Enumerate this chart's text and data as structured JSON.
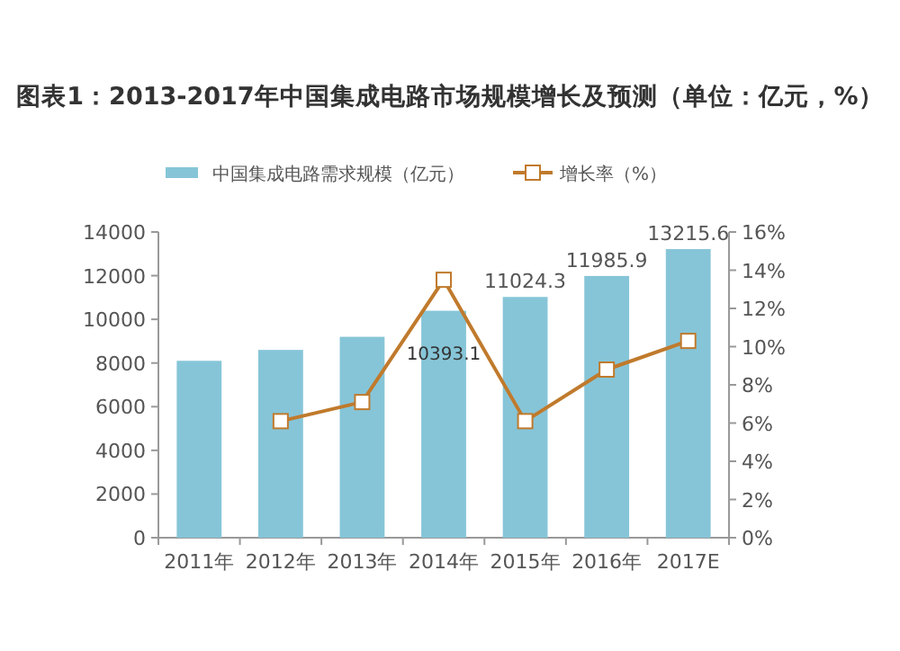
{
  "chart_data": {
    "type": "bar",
    "title": "图表1：2013-2017年中国集成电路市场规模增长及预测（单位：亿元，%）",
    "categories": [
      "2011年",
      "2012年",
      "2013年",
      "2014年",
      "2015年",
      "2016年",
      "2017E"
    ],
    "series": [
      {
        "name": "中国集成电路需求规模（亿元）",
        "color": "#86c5d8",
        "values": [
          8100,
          8600,
          9200,
          10393.1,
          11024.3,
          11985.9,
          13215.6
        ],
        "value_labels": [
          null,
          null,
          null,
          "10393.1",
          "11024.3",
          "11985.9",
          "13215.6"
        ]
      },
      {
        "name": "增长率（%）",
        "type": "line",
        "axis": "y2",
        "color": "#c07a2c",
        "marker": "square",
        "values": [
          null,
          6.1,
          7.1,
          13.5,
          6.1,
          8.8,
          10.3
        ]
      }
    ],
    "ylim": [
      0,
      14000
    ],
    "yticks": [
      0,
      2000,
      4000,
      6000,
      8000,
      10000,
      12000,
      14000
    ],
    "y2lim": [
      0,
      16
    ],
    "y2ticks": [
      {
        "value": 0,
        "label": "0%"
      },
      {
        "value": 2,
        "label": "2%"
      },
      {
        "value": 4,
        "label": "4%"
      },
      {
        "value": 6,
        "label": "6%"
      },
      {
        "value": 8,
        "label": "8%"
      },
      {
        "value": 10,
        "label": "10%"
      },
      {
        "value": 12,
        "label": "12%"
      },
      {
        "value": 14,
        "label": "14%"
      },
      {
        "value": 16,
        "label": "16%"
      }
    ],
    "legend": "top",
    "grid": false
  }
}
